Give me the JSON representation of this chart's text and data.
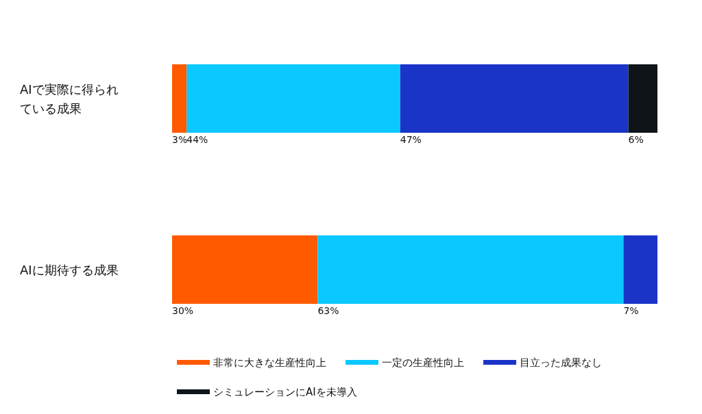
{
  "chart_data": {
    "type": "bar",
    "orientation": "horizontal",
    "stacked": true,
    "categories": [
      "AIで実際に得られている成果",
      "AIに期待する成果"
    ],
    "series": [
      {
        "name": "非常に大きな生産性向上",
        "color": "#ff5a00",
        "values": [
          3,
          30
        ],
        "value_labels": [
          "3%",
          "30%"
        ]
      },
      {
        "name": "一定の生産性向上",
        "color": "#0bc8ff",
        "values": [
          44,
          63
        ],
        "value_labels": [
          "44%",
          "63%"
        ]
      },
      {
        "name": "目立った成果なし",
        "color": "#1a34c8",
        "values": [
          47,
          7
        ],
        "value_labels": [
          "47%",
          "7%"
        ]
      },
      {
        "name": "シミュレーションにAIを未導入",
        "color": "#0f1419",
        "values": [
          6,
          null
        ],
        "value_labels": [
          "6%",
          null
        ]
      }
    ],
    "xlim": [
      0,
      100
    ],
    "tick_labels": "y",
    "grid": false,
    "legend": "bottom"
  }
}
